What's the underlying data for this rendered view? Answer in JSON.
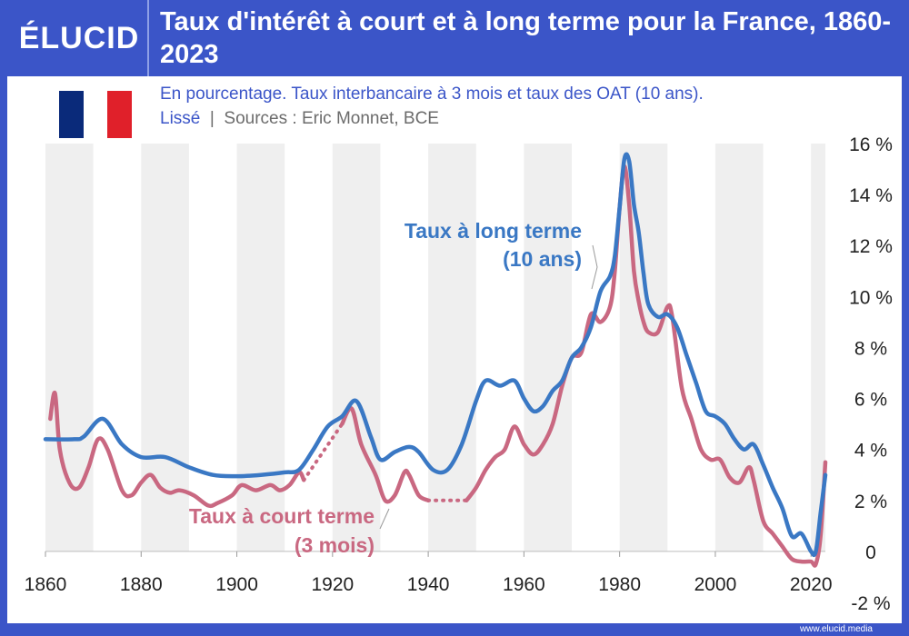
{
  "brand": {
    "logo_text": "ÉLUCID",
    "website": "www.elucid.media"
  },
  "title": "Taux d'intérêt à court et à long terme pour la France, 1860-2023",
  "subtitle_line1": "En pourcentage. Taux interbancaire à 3 mois et taux des OAT (10 ans).",
  "subtitle_lisse": "Lissé",
  "subtitle_sources": "Sources : Eric Monnet, BCE",
  "colors": {
    "header": "#3b55c8",
    "long_rate": "#3a78c4",
    "short_rate": "#c96881",
    "band": "#efefef",
    "negative_tick": "#d8202a",
    "flag_blue": "#0a2a7a",
    "flag_white": "#ffffff",
    "flag_red": "#e0202a"
  },
  "chart_data": {
    "type": "line",
    "title": "Taux d'intérêt à court et à long terme pour la France, 1860-2023",
    "xlabel": "",
    "ylabel": "",
    "xlim": [
      1860,
      2023
    ],
    "ylim": [
      -2,
      16
    ],
    "x_ticks": [
      "1860",
      "1880",
      "1900",
      "1920",
      "1940",
      "1960",
      "1980",
      "2000",
      "2020"
    ],
    "y_ticks": [
      "-2 %",
      "0",
      "2 %",
      "4 %",
      "6 %",
      "8 %",
      "10 %",
      "12 %",
      "14 %",
      "16 %"
    ],
    "grid": false,
    "background_bands": "alternating decades",
    "series": [
      {
        "name": "Taux à long terme\n(10 ans)",
        "color": "#3a78c4",
        "points": [
          [
            1860,
            4.4
          ],
          [
            1866,
            4.4
          ],
          [
            1868,
            4.5
          ],
          [
            1872,
            5.2
          ],
          [
            1876,
            4.2
          ],
          [
            1880,
            3.7
          ],
          [
            1885,
            3.7
          ],
          [
            1890,
            3.3
          ],
          [
            1895,
            3.0
          ],
          [
            1900,
            2.95
          ],
          [
            1905,
            3.0
          ],
          [
            1910,
            3.1
          ],
          [
            1913,
            3.2
          ],
          [
            1916,
            4.0
          ],
          [
            1919,
            4.9
          ],
          [
            1922,
            5.3
          ],
          [
            1925,
            5.9
          ],
          [
            1928,
            4.5
          ],
          [
            1930,
            3.6
          ],
          [
            1933,
            3.9
          ],
          [
            1936,
            4.1
          ],
          [
            1938,
            3.9
          ],
          [
            1941,
            3.2
          ],
          [
            1944,
            3.2
          ],
          [
            1947,
            4.2
          ],
          [
            1950,
            5.9
          ],
          [
            1952,
            6.7
          ],
          [
            1955,
            6.5
          ],
          [
            1958,
            6.7
          ],
          [
            1960,
            6.0
          ],
          [
            1962,
            5.5
          ],
          [
            1964,
            5.7
          ],
          [
            1966,
            6.3
          ],
          [
            1968,
            6.7
          ],
          [
            1970,
            7.6
          ],
          [
            1972,
            8.0
          ],
          [
            1974,
            8.8
          ],
          [
            1976,
            10.2
          ],
          [
            1978,
            10.8
          ],
          [
            1979,
            11.6
          ],
          [
            1980,
            13.5
          ],
          [
            1981,
            15.4
          ],
          [
            1982,
            15.3
          ],
          [
            1983,
            13.6
          ],
          [
            1984,
            12.5
          ],
          [
            1985,
            10.9
          ],
          [
            1986,
            9.7
          ],
          [
            1988,
            9.2
          ],
          [
            1990,
            9.3
          ],
          [
            1992,
            8.8
          ],
          [
            1994,
            7.7
          ],
          [
            1996,
            6.6
          ],
          [
            1998,
            5.5
          ],
          [
            2000,
            5.3
          ],
          [
            2002,
            5.0
          ],
          [
            2004,
            4.4
          ],
          [
            2006,
            4.0
          ],
          [
            2008,
            4.2
          ],
          [
            2010,
            3.4
          ],
          [
            2012,
            2.5
          ],
          [
            2014,
            1.7
          ],
          [
            2016,
            0.6
          ],
          [
            2018,
            0.7
          ],
          [
            2020,
            0.0
          ],
          [
            2021,
            0.0
          ],
          [
            2022,
            1.5
          ],
          [
            2023,
            3.0
          ]
        ]
      },
      {
        "name": "Taux à court terme\n(3 mois)",
        "color": "#c96881",
        "points": [
          [
            1861,
            5.2
          ],
          [
            1862,
            6.2
          ],
          [
            1863,
            4.0
          ],
          [
            1865,
            2.7
          ],
          [
            1867,
            2.5
          ],
          [
            1869,
            3.3
          ],
          [
            1871,
            4.4
          ],
          [
            1873,
            4.0
          ],
          [
            1876,
            2.4
          ],
          [
            1878,
            2.2
          ],
          [
            1880,
            2.7
          ],
          [
            1882,
            3.0
          ],
          [
            1884,
            2.5
          ],
          [
            1886,
            2.3
          ],
          [
            1888,
            2.4
          ],
          [
            1891,
            2.2
          ],
          [
            1894,
            1.8
          ],
          [
            1896,
            1.9
          ],
          [
            1899,
            2.2
          ],
          [
            1901,
            2.6
          ],
          [
            1904,
            2.4
          ],
          [
            1907,
            2.6
          ],
          [
            1909,
            2.4
          ],
          [
            1911,
            2.6
          ],
          [
            1913,
            3.1
          ],
          [
            1914,
            2.8
          ],
          [
            1922,
            5.0
          ],
          [
            1924,
            5.6
          ],
          [
            1926,
            4.2
          ],
          [
            1929,
            3.0
          ],
          [
            1931,
            2.0
          ],
          [
            1933,
            2.2
          ],
          [
            1935,
            3.1
          ],
          [
            1936,
            3.0
          ],
          [
            1938,
            2.2
          ],
          [
            1940,
            2.0
          ],
          [
            1948,
            2.0
          ],
          [
            1950,
            2.5
          ],
          [
            1952,
            3.2
          ],
          [
            1954,
            3.7
          ],
          [
            1956,
            4.0
          ],
          [
            1958,
            4.9
          ],
          [
            1960,
            4.2
          ],
          [
            1962,
            3.8
          ],
          [
            1964,
            4.2
          ],
          [
            1966,
            5.0
          ],
          [
            1968,
            6.5
          ],
          [
            1970,
            7.6
          ],
          [
            1972,
            7.8
          ],
          [
            1974,
            9.3
          ],
          [
            1976,
            9.0
          ],
          [
            1978,
            9.6
          ],
          [
            1979,
            11.0
          ],
          [
            1980,
            13.5
          ],
          [
            1981,
            15.1
          ],
          [
            1982,
            13.6
          ],
          [
            1983,
            11.0
          ],
          [
            1984,
            9.8
          ],
          [
            1985,
            9.0
          ],
          [
            1986,
            8.6
          ],
          [
            1988,
            8.6
          ],
          [
            1990,
            9.6
          ],
          [
            1991,
            9.2
          ],
          [
            1993,
            6.4
          ],
          [
            1995,
            5.2
          ],
          [
            1997,
            4.0
          ],
          [
            1999,
            3.6
          ],
          [
            2001,
            3.6
          ],
          [
            2003,
            2.9
          ],
          [
            2005,
            2.7
          ],
          [
            2007,
            3.3
          ],
          [
            2008,
            2.8
          ],
          [
            2010,
            1.2
          ],
          [
            2012,
            0.7
          ],
          [
            2014,
            0.2
          ],
          [
            2016,
            -0.3
          ],
          [
            2018,
            -0.4
          ],
          [
            2020,
            -0.4
          ],
          [
            2021,
            -0.5
          ],
          [
            2022,
            0.6
          ],
          [
            2023,
            3.5
          ]
        ],
        "dotted_gaps": [
          [
            1914,
            1922
          ],
          [
            1940,
            1948
          ]
        ]
      }
    ]
  }
}
